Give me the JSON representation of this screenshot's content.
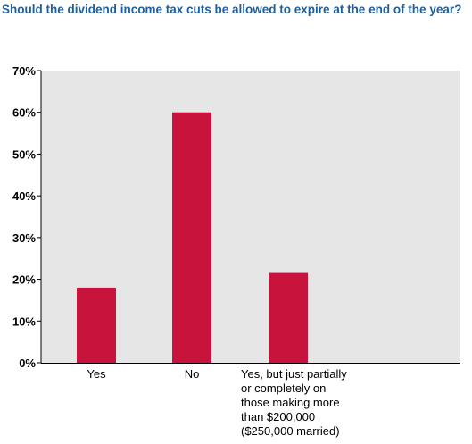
{
  "chart_data": {
    "type": "bar",
    "title": "Should the dividend income tax cuts be allowed to expire at the end of the year?",
    "categories": [
      [
        "Yes"
      ],
      [
        "No"
      ],
      [
        "Yes, but just partially",
        "or completely on",
        "those making more",
        "than $200,000",
        "($250,000 married)"
      ]
    ],
    "values": [
      18,
      60,
      21.5
    ],
    "ylim": [
      0,
      70
    ],
    "yticks": [
      0,
      10,
      20,
      30,
      40,
      50,
      60,
      70
    ],
    "ytick_suffix": "%",
    "grid": false,
    "xlabel": "",
    "ylabel": ""
  },
  "colors": {
    "bar": "#c8143c",
    "plot_background": "#e6e6e6",
    "axis": "#000000",
    "title": "#1f5f9c"
  }
}
